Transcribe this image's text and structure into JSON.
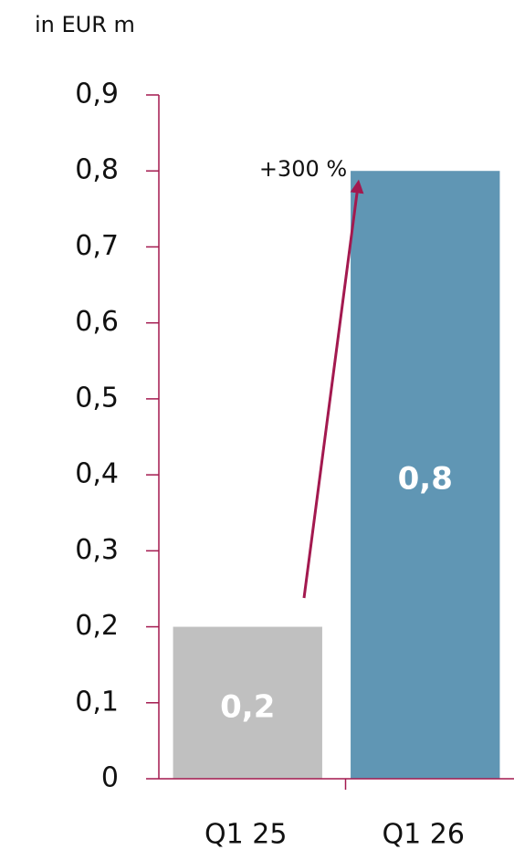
{
  "chart_data": {
    "type": "bar",
    "y_axis_label": "in EUR m",
    "categories": [
      "Q1 25",
      "Q1 26"
    ],
    "values": [
      0.2,
      0.8
    ],
    "value_labels": [
      "0,2",
      "0,8"
    ],
    "colors": [
      "#c0c0c0",
      "#6096b4"
    ],
    "axis_color": "#a3194f",
    "annotation": "+300 %",
    "ylim": [
      0,
      0.9
    ],
    "yticks": [
      0,
      {
        "value": 0.1,
        "label": "0,1"
      },
      {
        "value": 0.2,
        "label": "0,2"
      },
      {
        "value": 0.3,
        "label": "0,3"
      },
      {
        "value": 0.4,
        "label": "0,4"
      },
      {
        "value": 0.5,
        "label": "0,5"
      },
      {
        "value": 0.6,
        "label": "0,6"
      },
      {
        "value": 0.7,
        "label": "0,7"
      },
      {
        "value": 0.8,
        "label": "0,8"
      },
      {
        "value": 0.9,
        "label": "0,9"
      }
    ],
    "grid": false
  }
}
